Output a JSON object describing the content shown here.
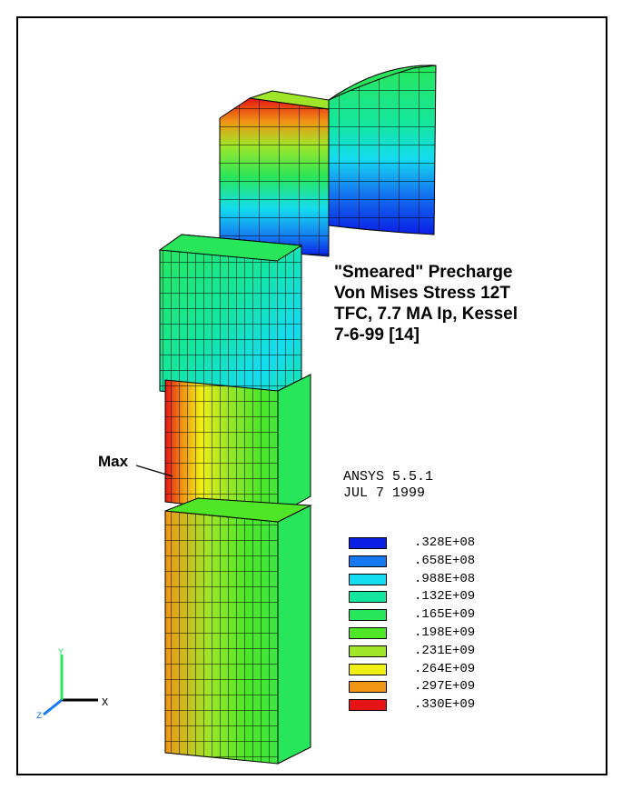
{
  "title_lines": [
    "\"Smeared\" Precharge",
    "Von Mises Stress 12T",
    "TFC, 7.7 MA Ip, Kessel",
    "7-6-99 [14]"
  ],
  "software": {
    "name": "ANSYS 5.5.1",
    "date": "JUL  7 1999"
  },
  "max_label": "Max",
  "axes": {
    "x": "X",
    "y": "Y",
    "z": "Z"
  },
  "legend": [
    {
      "label": ".328E+08",
      "color": "#0a1ee6"
    },
    {
      "label": ".658E+08",
      "color": "#1478f0"
    },
    {
      "label": ".988E+08",
      "color": "#14dcf0"
    },
    {
      "label": ".132E+09",
      "color": "#14e6a0"
    },
    {
      "label": ".165E+09",
      "color": "#28e65a"
    },
    {
      "label": ".198E+09",
      "color": "#50e628"
    },
    {
      "label": ".231E+09",
      "color": "#a0e628"
    },
    {
      "label": ".264E+09",
      "color": "#f0f014"
    },
    {
      "label": ".297E+09",
      "color": "#f09614"
    },
    {
      "label": ".330E+09",
      "color": "#e61414"
    }
  ]
}
